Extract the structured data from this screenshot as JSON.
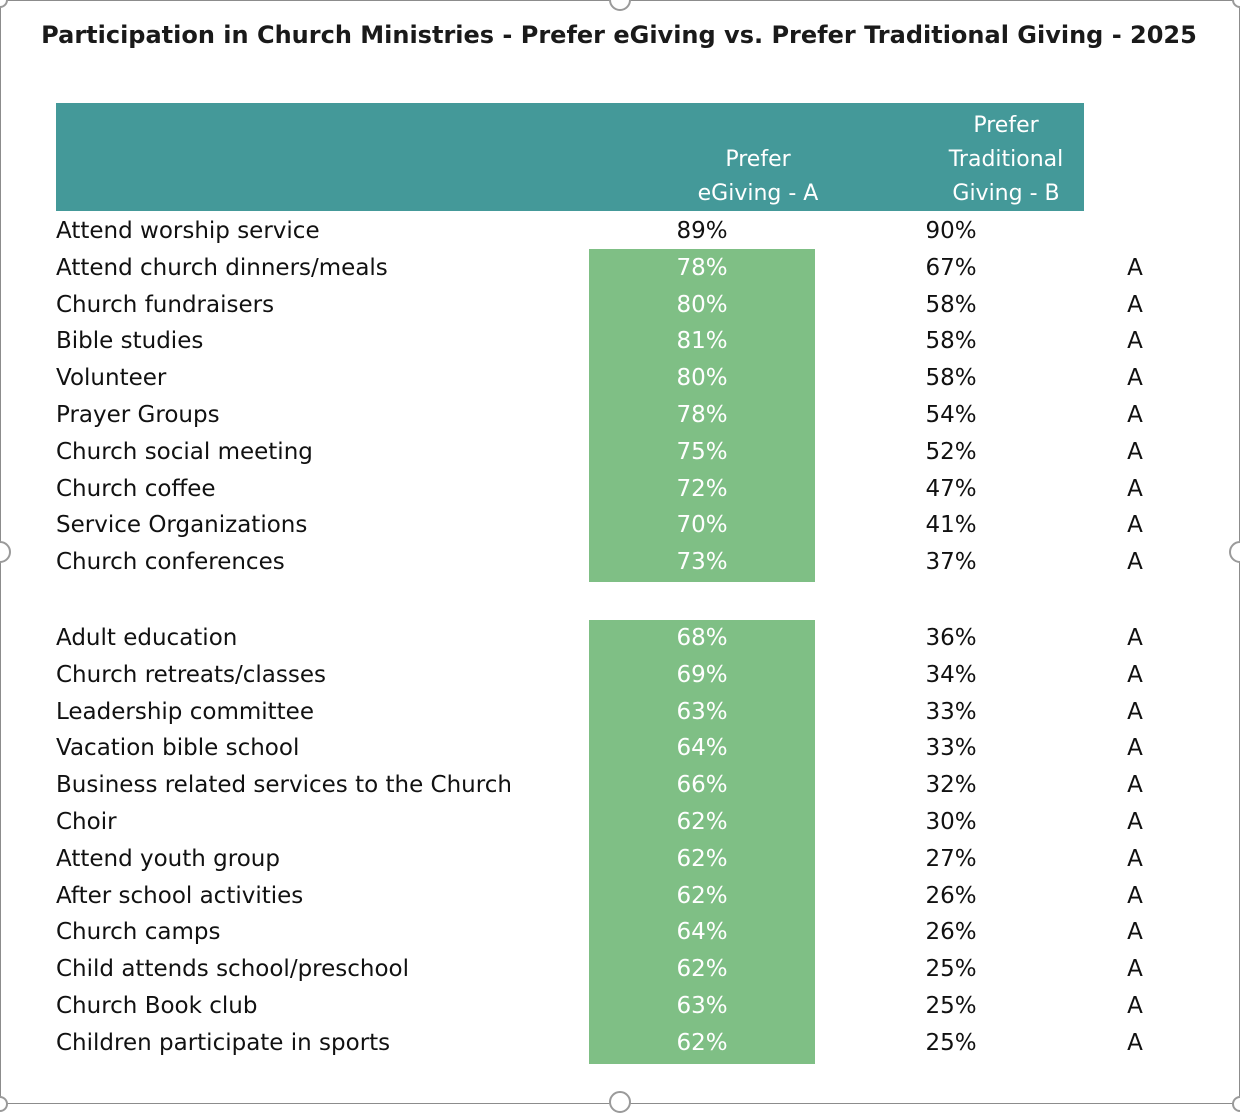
{
  "chart_data": {
    "type": "table",
    "title": "Participation in Church Ministries - Prefer eGiving vs. Prefer Traditional Giving - 2025",
    "columns": [
      "Prefer eGiving - A",
      "Prefer Traditional Giving - B"
    ],
    "header_a_lines": [
      "Prefer",
      "eGiving - A"
    ],
    "header_b_lines": [
      "Prefer",
      "Traditional",
      "Giving - B"
    ],
    "highlight_color": "#7fbf85",
    "header_color": "#449999",
    "groups": [
      {
        "rows": [
          {
            "label": "Attend worship service",
            "a": "89%",
            "b": "90%",
            "sig": "",
            "highlight": false
          },
          {
            "label": "Attend church dinners/meals",
            "a": "78%",
            "b": "67%",
            "sig": "A",
            "highlight": true
          },
          {
            "label": "Church fundraisers",
            "a": "80%",
            "b": "58%",
            "sig": "A",
            "highlight": true
          },
          {
            "label": "Bible studies",
            "a": "81%",
            "b": "58%",
            "sig": "A",
            "highlight": true
          },
          {
            "label": "Volunteer",
            "a": "80%",
            "b": "58%",
            "sig": "A",
            "highlight": true
          },
          {
            "label": "Prayer Groups",
            "a": "78%",
            "b": "54%",
            "sig": "A",
            "highlight": true
          },
          {
            "label": "Church social meeting",
            "a": "75%",
            "b": "52%",
            "sig": "A",
            "highlight": true
          },
          {
            "label": "Church coffee",
            "a": "72%",
            "b": "47%",
            "sig": "A",
            "highlight": true
          },
          {
            "label": "Service Organizations",
            "a": "70%",
            "b": "41%",
            "sig": "A",
            "highlight": true
          },
          {
            "label": "Church conferences",
            "a": "73%",
            "b": "37%",
            "sig": "A",
            "highlight": true
          }
        ]
      },
      {
        "rows": [
          {
            "label": "Adult education",
            "a": "68%",
            "b": "36%",
            "sig": "A",
            "highlight": true
          },
          {
            "label": "Church retreats/classes",
            "a": "69%",
            "b": "34%",
            "sig": "A",
            "highlight": true
          },
          {
            "label": "Leadership committee",
            "a": "63%",
            "b": "33%",
            "sig": "A",
            "highlight": true
          },
          {
            "label": "Vacation bible school",
            "a": "64%",
            "b": "33%",
            "sig": "A",
            "highlight": true
          },
          {
            "label": "Business related services to the Church",
            "a": "66%",
            "b": "32%",
            "sig": "A",
            "highlight": true
          },
          {
            "label": "Choir",
            "a": "62%",
            "b": "30%",
            "sig": "A",
            "highlight": true
          },
          {
            "label": "Attend youth group",
            "a": "62%",
            "b": "27%",
            "sig": "A",
            "highlight": true
          },
          {
            "label": "After school activities",
            "a": "62%",
            "b": "26%",
            "sig": "A",
            "highlight": true
          },
          {
            "label": "Church camps",
            "a": "64%",
            "b": "26%",
            "sig": "A",
            "highlight": true
          },
          {
            "label": "Child attends school/preschool",
            "a": "62%",
            "b": "25%",
            "sig": "A",
            "highlight": true
          },
          {
            "label": "Church Book club",
            "a": "63%",
            "b": "25%",
            "sig": "A",
            "highlight": true
          },
          {
            "label": "Children participate in sports",
            "a": "62%",
            "b": "25%",
            "sig": "A",
            "highlight": true
          }
        ]
      }
    ]
  }
}
